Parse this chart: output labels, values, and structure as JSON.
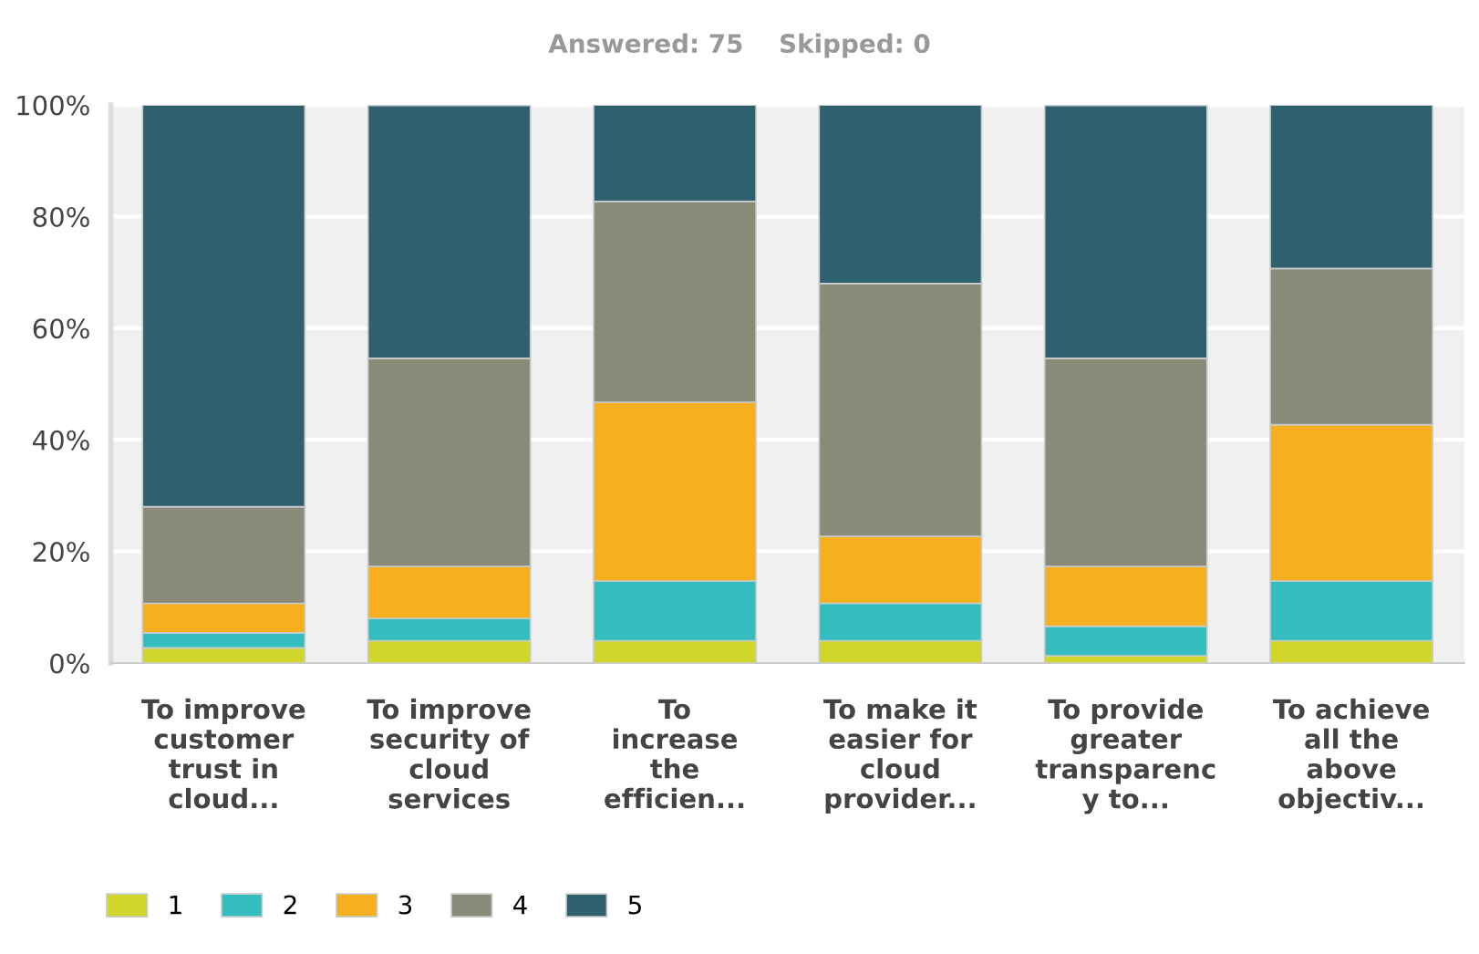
{
  "chart_data": {
    "type": "bar",
    "stacked": true,
    "title": "Answered: 75    Skipped: 0",
    "categories": [
      "To improve\ncustomer\ntrust in\ncloud...",
      "To improve\nsecurity of\ncloud\nservices",
      "To\nincrease\nthe\nefficien...",
      "To make it\neasier for\ncloud\nprovider...",
      "To provide\ngreater\ntransparenc\ny to...",
      "To achieve\nall the\nabove\nobjectiv..."
    ],
    "series": [
      {
        "name": "1",
        "color": "#d0d62a",
        "values": [
          2.7,
          4.0,
          4.0,
          4.0,
          1.3,
          4.0
        ]
      },
      {
        "name": "2",
        "color": "#35bcbf",
        "values": [
          2.7,
          4.0,
          10.7,
          6.7,
          5.3,
          10.7
        ]
      },
      {
        "name": "3",
        "color": "#f5af1f",
        "values": [
          5.3,
          9.3,
          32.0,
          12.0,
          10.7,
          28.0
        ]
      },
      {
        "name": "4",
        "color": "#898a78",
        "values": [
          17.3,
          37.3,
          36.0,
          45.3,
          37.3,
          28.0
        ]
      },
      {
        "name": "5",
        "color": "#2f606d",
        "values": [
          72.0,
          45.3,
          17.3,
          32.0,
          45.3,
          29.3
        ]
      }
    ],
    "ylim": [
      0,
      100
    ],
    "yticks": [
      {
        "value": 0,
        "label": "0%"
      },
      {
        "value": 20,
        "label": "20%"
      },
      {
        "value": 40,
        "label": "40%"
      },
      {
        "value": 60,
        "label": "60%"
      },
      {
        "value": 80,
        "label": "80%"
      },
      {
        "value": 100,
        "label": "100%"
      }
    ],
    "grid": "y",
    "legend": "bottom left"
  }
}
